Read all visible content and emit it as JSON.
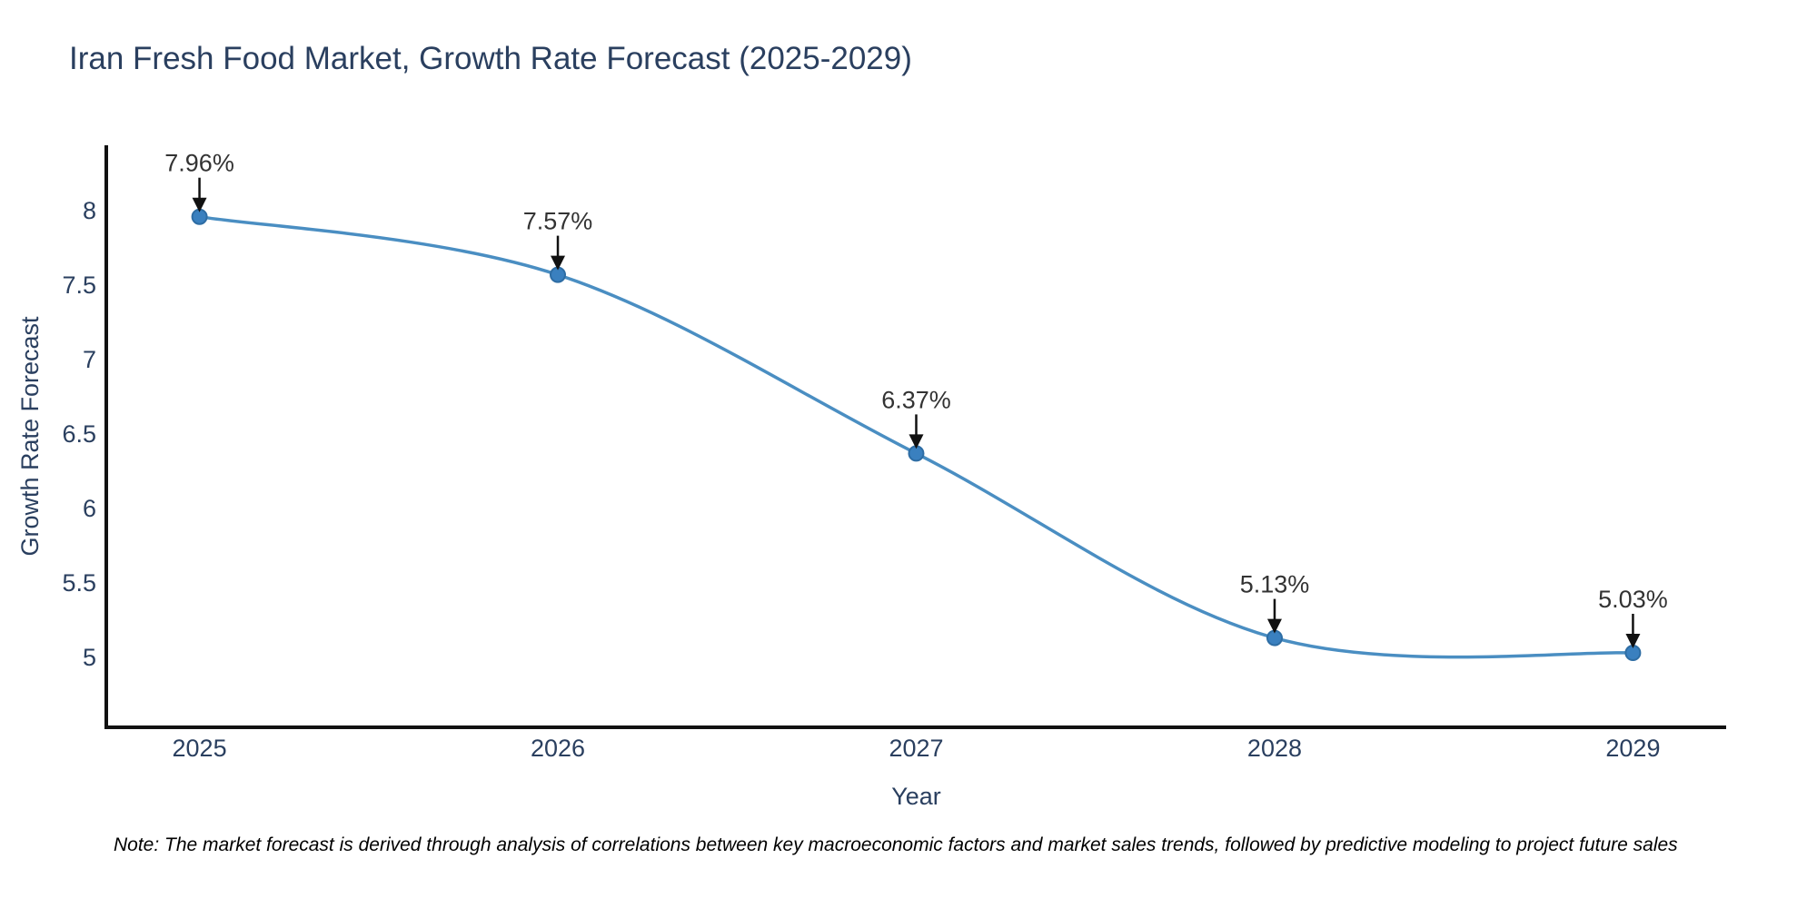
{
  "header": {
    "title": "Iran Fresh Food Market, Growth Rate Forecast (2025-2029)"
  },
  "footnote": "Note: The market forecast is derived through analysis of correlations between key macroeconomic factors and market sales trends, followed by predictive modeling to project future sales",
  "chart_data": {
    "type": "line",
    "line_shape": "spline",
    "title": "Iran Fresh Food Market, Growth Rate Forecast (2025-2029)",
    "xlabel": "Year",
    "ylabel": "Growth Rate Forecast",
    "x": [
      2025,
      2026,
      2027,
      2028,
      2029
    ],
    "values": [
      7.96,
      7.57,
      6.37,
      5.13,
      5.03
    ],
    "point_labels": [
      "7.96%",
      "7.57%",
      "6.37%",
      "5.13%",
      "5.03%"
    ],
    "xtick_labels": [
      "2025",
      "2026",
      "2027",
      "2028",
      "2029"
    ],
    "ytick_values": [
      5,
      5.5,
      6,
      6.5,
      7,
      7.5,
      8
    ],
    "ytick_labels": [
      "5",
      "5.5",
      "6",
      "6.5",
      "7",
      "7.5",
      "8"
    ],
    "xlim": [
      2024.74,
      2029.26
    ],
    "ylim": [
      4.53,
      8.44
    ],
    "grid": false,
    "legend": false,
    "colors": {
      "line": "#4a8ec2",
      "marker_fill": "#3a80bf",
      "marker_edge": "#2e6da4",
      "axis": "#111111",
      "tick_text": "#2a3f5f",
      "annotation_text": "#333333",
      "arrow": "#111111",
      "title_text": "#2a3f5f",
      "background": "#ffffff"
    }
  }
}
